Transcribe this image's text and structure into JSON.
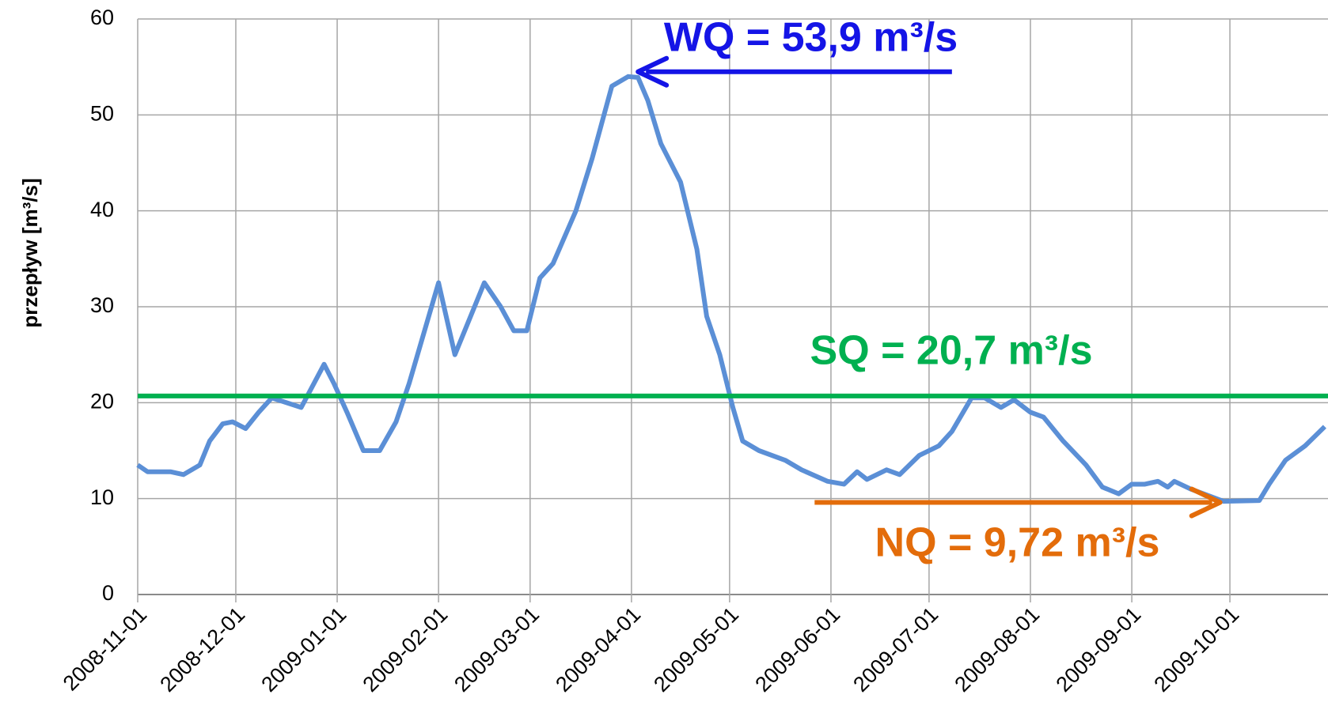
{
  "chart_data": {
    "type": "line",
    "ylabel": "przepływ [m³/s]",
    "color": "#5b8fd6",
    "x": [
      "2008-11-01",
      "2008-11-04",
      "2008-11-11",
      "2008-11-15",
      "2008-11-20",
      "2008-11-23",
      "2008-11-27",
      "2008-11-30",
      "2008-12-04",
      "2008-12-08",
      "2008-12-12",
      "2008-12-21",
      "2008-12-28",
      "2008-12-31",
      "2009-01-04",
      "2009-01-09",
      "2009-01-14",
      "2009-01-19",
      "2009-01-23",
      "2009-01-26",
      "2009-02-01",
      "2009-02-06",
      "2009-02-15",
      "2009-02-20",
      "2009-02-24",
      "2009-02-28",
      "2009-03-04",
      "2009-03-08",
      "2009-03-15",
      "2009-03-20",
      "2009-03-26",
      "2009-03-31",
      "2009-04-03",
      "2009-04-06",
      "2009-04-10",
      "2009-04-16",
      "2009-04-21",
      "2009-04-24",
      "2009-04-28",
      "2009-05-02",
      "2009-05-05",
      "2009-05-10",
      "2009-05-18",
      "2009-05-23",
      "2009-05-31",
      "2009-06-05",
      "2009-06-09",
      "2009-06-12",
      "2009-06-18",
      "2009-06-22",
      "2009-06-28",
      "2009-07-04",
      "2009-07-08",
      "2009-07-14",
      "2009-07-18",
      "2009-07-23",
      "2009-07-27",
      "2009-08-01",
      "2009-08-05",
      "2009-08-11",
      "2009-08-18",
      "2009-08-23",
      "2009-08-28",
      "2009-09-01",
      "2009-09-05",
      "2009-09-09",
      "2009-09-12",
      "2009-09-14",
      "2009-09-19",
      "2009-09-29",
      "2009-10-10",
      "2009-10-13",
      "2009-10-18",
      "2009-10-24",
      "2009-10-30"
    ],
    "values": [
      13.5,
      12.8,
      12.8,
      12.5,
      13.5,
      16,
      17.8,
      18,
      17.3,
      19,
      20.5,
      19.5,
      24,
      22,
      19,
      15,
      15,
      18,
      22,
      25.5,
      32.5,
      25,
      32.5,
      30,
      27.5,
      27.5,
      33,
      34.5,
      40,
      45.5,
      53,
      54,
      53.9,
      51.5,
      47,
      43,
      36,
      29,
      25,
      19.5,
      16,
      15,
      14,
      13,
      11.8,
      11.5,
      12.8,
      12,
      13,
      12.5,
      14.5,
      15.5,
      17,
      20.5,
      20.5,
      19.5,
      20.3,
      19,
      18.5,
      16,
      13.5,
      11.2,
      10.5,
      11.5,
      11.5,
      11.8,
      11.2,
      11.8,
      11,
      9.72,
      9.8,
      11.5,
      14,
      15.5,
      17.5
    ],
    "xlim": [
      "2008-11-01",
      "2009-10-31"
    ],
    "xticks": [
      "2008-11-01",
      "2008-12-01",
      "2009-01-01",
      "2009-02-01",
      "2009-03-01",
      "2009-04-01",
      "2009-05-01",
      "2009-06-01",
      "2009-07-01",
      "2009-08-01",
      "2009-09-01",
      "2009-10-01"
    ],
    "ylim": [
      0,
      60
    ],
    "yticks": [
      0,
      10,
      20,
      30,
      40,
      50,
      60
    ],
    "grid": true,
    "reference_line": {
      "y": 20.7,
      "text": "SQ = 20,7 m³/s",
      "color": "#00b050"
    },
    "arrows": [
      {
        "text": "WQ = 53,9 m³/s",
        "color": "#1414e6",
        "from": "2009-07-08",
        "to": "2009-04-03",
        "y": 54.5
      },
      {
        "text": "NQ = 9,72 m³/s",
        "color": "#e36c0a",
        "from": "2009-05-27",
        "to": "2009-09-28",
        "y": 9.6
      }
    ]
  }
}
